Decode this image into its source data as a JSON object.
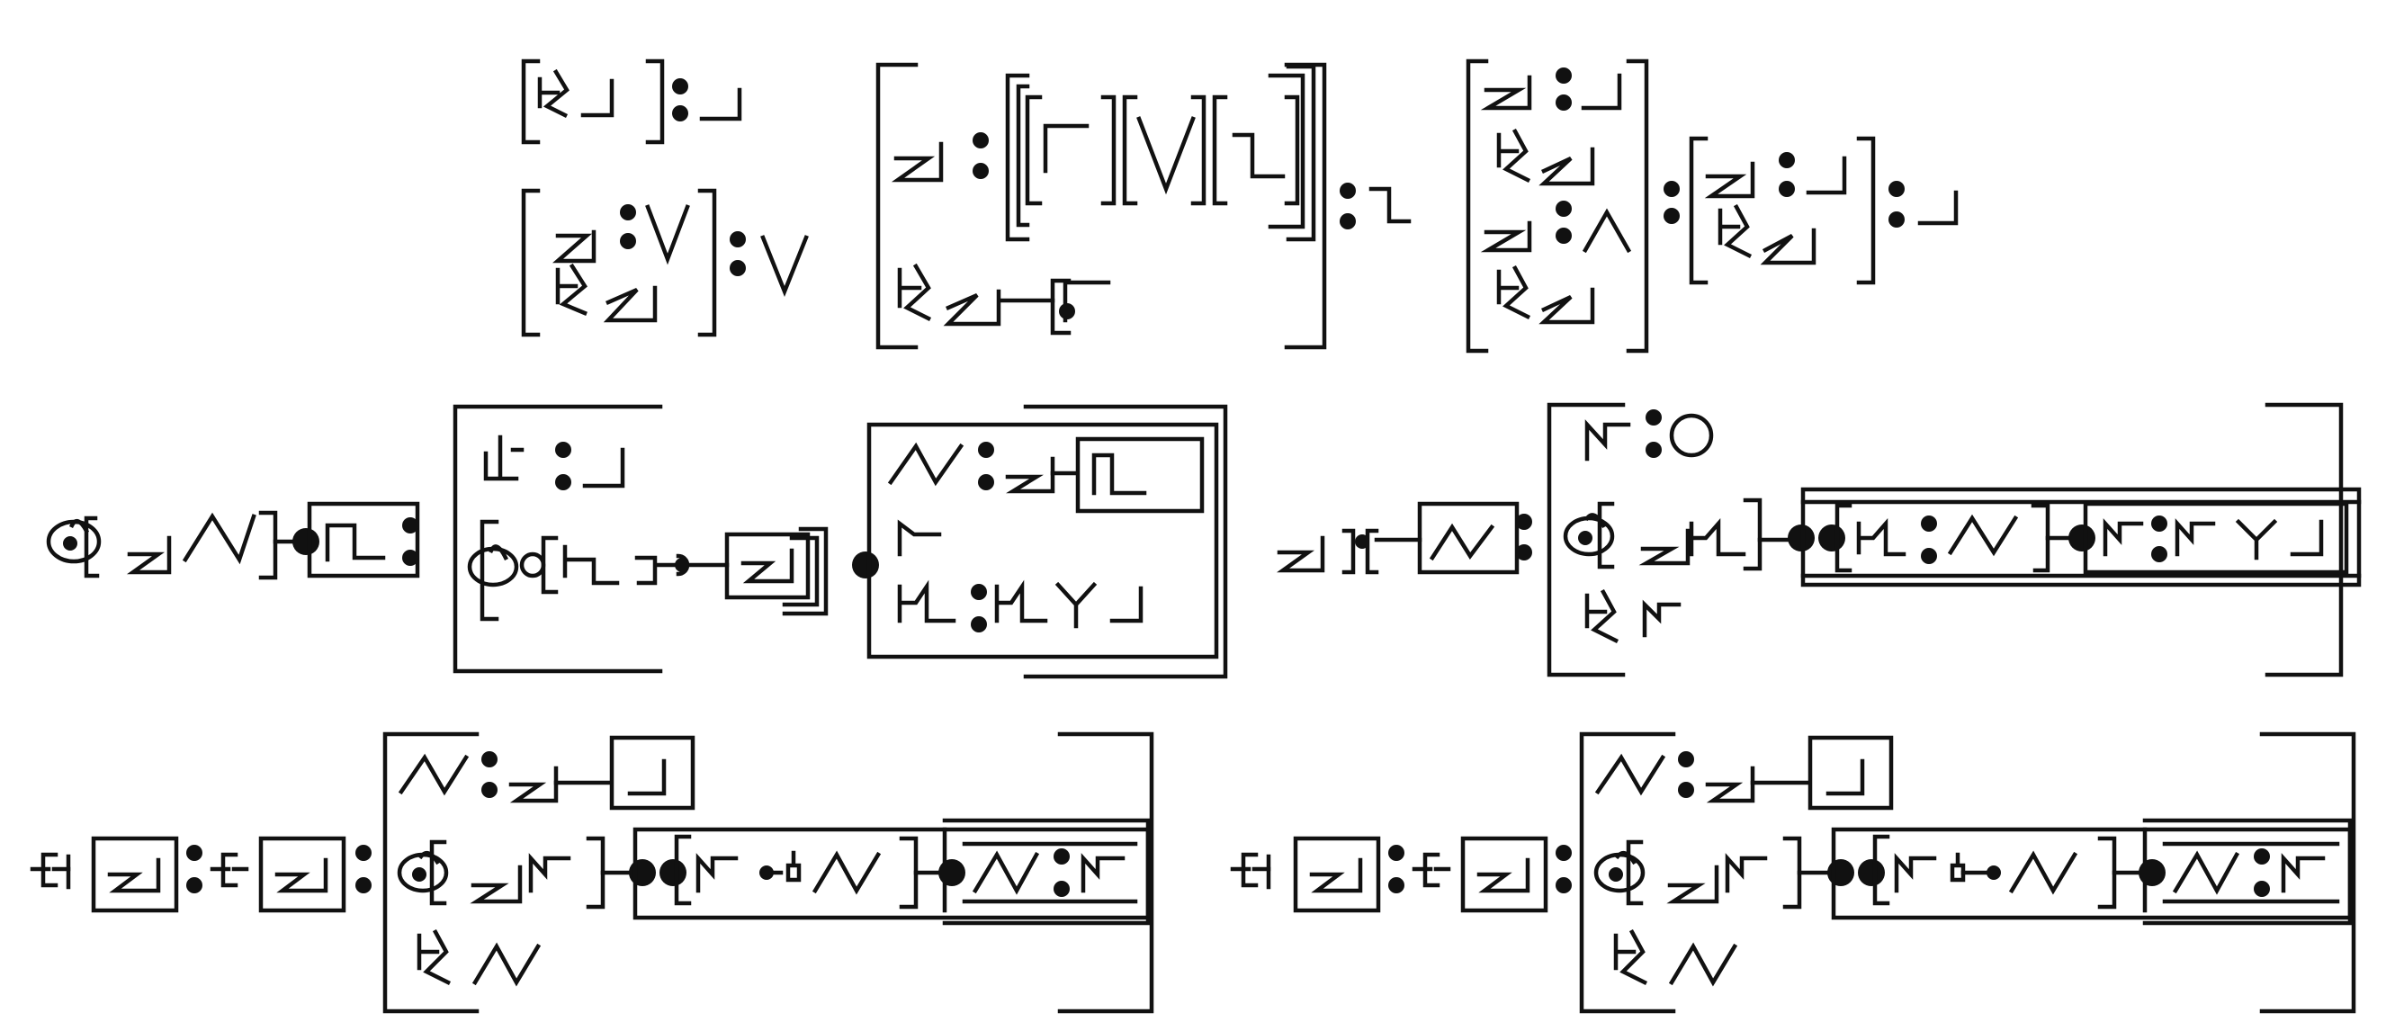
{
  "diagram": {
    "background": "#ffffff",
    "ink": "#111111",
    "rows": [
      {
        "name": "row-1",
        "groups": [
          "bracket-pair-small",
          "nested-bracket-large",
          "double-stack-bracket"
        ]
      },
      {
        "name": "row-2",
        "groups": [
          "chain-with-box-left",
          "chain-with-box-right"
        ]
      },
      {
        "name": "row-3",
        "groups": [
          "chain-bottom-left",
          "chain-bottom-right"
        ]
      }
    ],
    "glyph_icons": [
      "zigzag-glyph-icon",
      "mountain-glyph-icon",
      "rune-glyph-icon",
      "swirl-glyph-icon",
      "fork-glyph-icon",
      "circle-glyph-icon",
      "colon-icon",
      "connector-dot-icon"
    ]
  }
}
